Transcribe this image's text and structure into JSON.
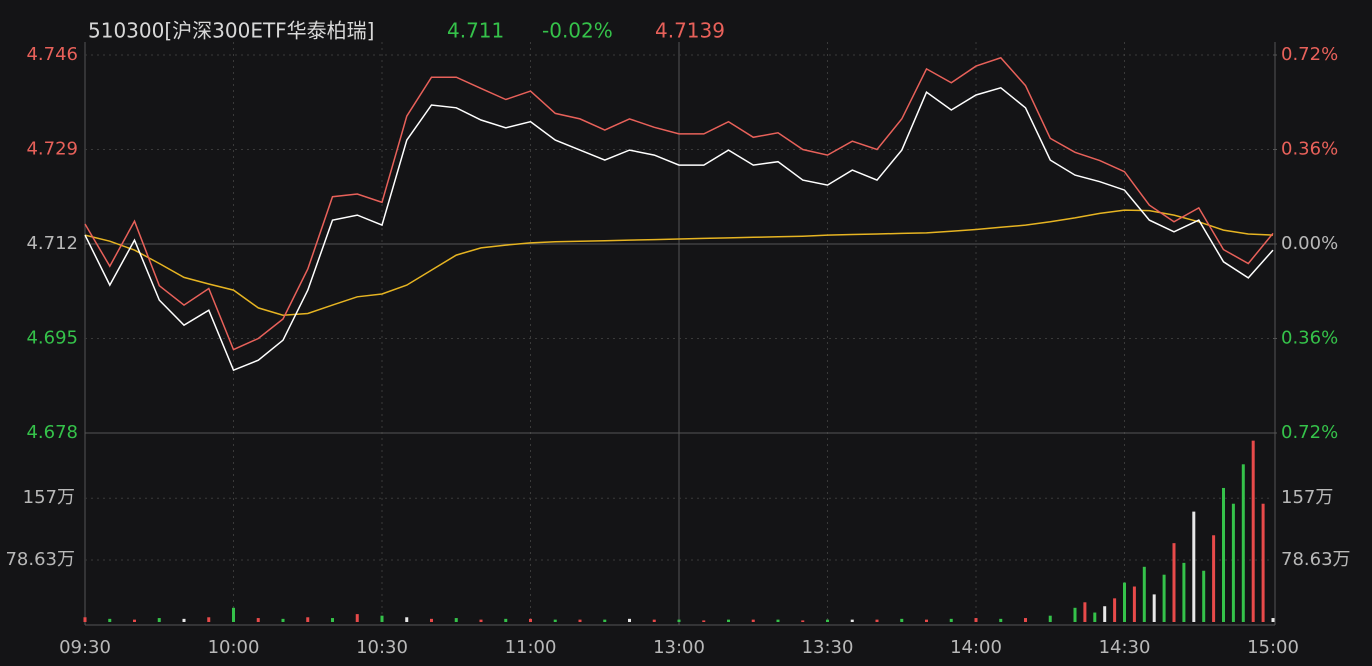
{
  "chart_data": [
    {
      "type": "line",
      "title": "510300[沪深300ETF华泰柏瑞]",
      "price": 4.711,
      "change": "-0.02%",
      "avg_price": 4.7139,
      "x": [
        0,
        5,
        10,
        15,
        20,
        25,
        30,
        35,
        40,
        45,
        50,
        55,
        60,
        65,
        70,
        75,
        80,
        85,
        90,
        95,
        100,
        105,
        110,
        115,
        120,
        125,
        130,
        135,
        140,
        145,
        150,
        155,
        160,
        165,
        170,
        175,
        180,
        185,
        190,
        195,
        200,
        205,
        210,
        215,
        220,
        225,
        230,
        235,
        240
      ],
      "xlim": [
        0,
        240
      ],
      "xticks": [
        {
          "value": 0,
          "label": "09:30"
        },
        {
          "value": 30,
          "label": "10:00"
        },
        {
          "value": 60,
          "label": "10:30"
        },
        {
          "value": 90,
          "label": "11:00"
        },
        {
          "value": 120,
          "label": "13:00"
        },
        {
          "value": 150,
          "label": "13:30"
        },
        {
          "value": 180,
          "label": "14:00"
        },
        {
          "value": 210,
          "label": "14:30"
        },
        {
          "value": 240,
          "label": "15:00"
        }
      ],
      "ylim": [
        4.678,
        4.746
      ],
      "yticks": [
        4.678,
        4.695,
        4.712,
        4.729,
        4.746
      ],
      "y2lim": [
        -0.72,
        0.72
      ],
      "y2ticks": [
        {
          "value": -0.72,
          "label": "0.72%"
        },
        {
          "value": -0.36,
          "label": "0.36%"
        },
        {
          "value": 0,
          "label": "0.00%"
        },
        {
          "value": 0.36,
          "label": "0.36%"
        },
        {
          "value": 0.72,
          "label": "0.72%"
        }
      ],
      "grid": true,
      "series": [
        {
          "color": "#ffffff",
          "values": [
            4.7136,
            4.7046,
            4.7127,
            4.7019,
            4.6974,
            4.7001,
            4.6893,
            4.6911,
            4.6947,
            4.7037,
            4.7163,
            4.7172,
            4.7154,
            4.7307,
            4.737,
            4.7365,
            4.7343,
            4.7329,
            4.734,
            4.7307,
            4.7289,
            4.7271,
            4.7289,
            4.728,
            4.7262,
            4.7262,
            4.7289,
            4.7262,
            4.7268,
            4.7235,
            4.7226,
            4.7253,
            4.7235,
            4.7289,
            4.7393,
            4.7361,
            4.7388,
            4.7401,
            4.7365,
            4.7271,
            4.7244,
            4.7232,
            4.7217,
            4.7163,
            4.7142,
            4.7163,
            4.7088,
            4.7059,
            4.7109
          ]
        },
        {
          "color": "#e8615a",
          "values": [
            4.7156,
            4.708,
            4.7161,
            4.7045,
            4.701,
            4.704,
            4.693,
            4.695,
            4.6985,
            4.7075,
            4.7205,
            4.721,
            4.7195,
            4.735,
            4.742,
            4.742,
            4.74,
            4.738,
            4.7395,
            4.7355,
            4.7345,
            4.7325,
            4.7345,
            4.733,
            4.7318,
            4.7318,
            4.734,
            4.7312,
            4.732,
            4.729,
            4.728,
            4.7305,
            4.729,
            4.7345,
            4.7435,
            4.741,
            4.744,
            4.7455,
            4.7405,
            4.731,
            4.7285,
            4.727,
            4.725,
            4.719,
            4.716,
            4.7185,
            4.711,
            4.7085,
            4.7139
          ]
        },
        {
          "color": "#e6b422",
          "values": [
            4.7136,
            4.7125,
            4.7109,
            4.7085,
            4.706,
            4.7048,
            4.7037,
            4.7005,
            4.6992,
            4.6995,
            4.701,
            4.7025,
            4.703,
            4.7046,
            4.7073,
            4.71,
            4.7113,
            4.7118,
            4.7122,
            4.7124,
            4.7125,
            4.7126,
            4.7127,
            4.7128,
            4.7129,
            4.713,
            4.7131,
            4.7132,
            4.7133,
            4.7134,
            4.7136,
            4.7137,
            4.7138,
            4.7139,
            4.714,
            4.7143,
            4.7146,
            4.715,
            4.7154,
            4.716,
            4.7167,
            4.7175,
            4.7181,
            4.718,
            4.7172,
            4.716,
            4.7145,
            4.7138,
            4.7136
          ]
        }
      ]
    },
    {
      "type": "bar",
      "x": [
        0,
        5,
        10,
        15,
        20,
        25,
        30,
        35,
        40,
        45,
        50,
        55,
        60,
        65,
        70,
        75,
        80,
        85,
        90,
        95,
        100,
        105,
        110,
        115,
        120,
        125,
        130,
        135,
        140,
        145,
        150,
        155,
        160,
        165,
        170,
        175,
        180,
        185,
        190,
        195,
        200,
        202,
        204,
        206,
        208,
        210,
        212,
        214,
        216,
        218,
        220,
        222,
        224,
        226,
        228,
        230,
        232,
        234,
        236,
        238,
        240
      ],
      "values": [
        6,
        4,
        3,
        5,
        4,
        6,
        18,
        5,
        4,
        6,
        5,
        10,
        8,
        6,
        4,
        5,
        3,
        4,
        4,
        3,
        3,
        3,
        4,
        3,
        3,
        2,
        3,
        3,
        3,
        2,
        3,
        3,
        3,
        4,
        3,
        4,
        5,
        4,
        5,
        8,
        18,
        25,
        12,
        20,
        30,
        50,
        45,
        70,
        35,
        60,
        100,
        75,
        140,
        65,
        110,
        170,
        150,
        200,
        230,
        150,
        5
      ],
      "colors": [
        "#e84a4a",
        "#35c24a",
        "#e84a4a",
        "#35c24a",
        "#e8e8e8",
        "#e84a4a",
        "#35c24a",
        "#e84a4a",
        "#35c24a",
        "#e84a4a",
        "#35c24a",
        "#e84a4a",
        "#35c24a",
        "#e8e8e8",
        "#e84a4a",
        "#35c24a",
        "#e84a4a",
        "#35c24a",
        "#e84a4a",
        "#35c24a",
        "#e84a4a",
        "#35c24a",
        "#e8e8e8",
        "#e84a4a",
        "#35c24a",
        "#e84a4a",
        "#35c24a",
        "#e84a4a",
        "#35c24a",
        "#e84a4a",
        "#35c24a",
        "#e8e8e8",
        "#e84a4a",
        "#35c24a",
        "#e84a4a",
        "#35c24a",
        "#e84a4a",
        "#35c24a",
        "#e84a4a",
        "#35c24a",
        "#35c24a",
        "#e84a4a",
        "#35c24a",
        "#e8e8e8",
        "#e84a4a",
        "#35c24a",
        "#e84a4a",
        "#35c24a",
        "#e8e8e8",
        "#35c24a",
        "#e84a4a",
        "#35c24a",
        "#e8e8e8",
        "#35c24a",
        "#e84a4a",
        "#35c24a",
        "#35c24a",
        "#35c24a",
        "#e84a4a",
        "#e84a4a",
        "#e8e8e8"
      ],
      "xlim": [
        0,
        240
      ],
      "ylim": [
        0,
        239.7
      ],
      "yticks": [
        {
          "value": 78.63,
          "label": "78.63万"
        },
        {
          "value": 157,
          "label": "157万"
        }
      ]
    }
  ]
}
